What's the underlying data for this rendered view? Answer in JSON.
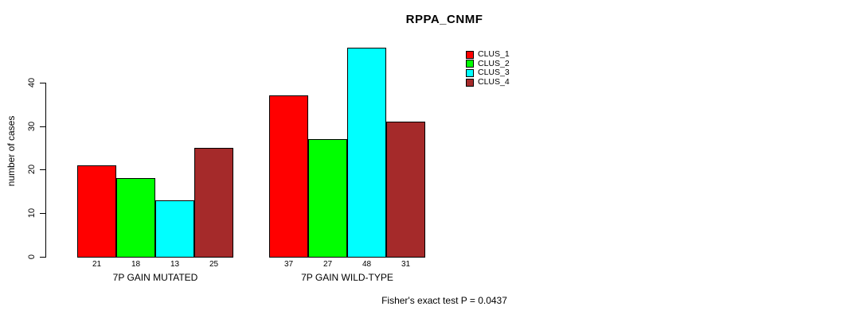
{
  "figure": {
    "title": "RPPA_CNMF",
    "y_axis_label": "number of cases",
    "annotation": "Fisher's exact test P = 0.0437"
  },
  "chart_data": {
    "type": "bar",
    "title": "RPPA_CNMF",
    "xlabel": "",
    "ylabel": "number of cases",
    "ylim": [
      0,
      48
    ],
    "yticks": [
      0,
      10,
      20,
      30,
      40
    ],
    "grid": false,
    "legend_position": "top-right",
    "categories": [
      "7P GAIN MUTATED",
      "7P GAIN WILD-TYPE"
    ],
    "series": [
      {
        "name": "CLUS_1",
        "color": "#ff0000",
        "values": [
          21,
          37
        ]
      },
      {
        "name": "CLUS_2",
        "color": "#00ff00",
        "values": [
          18,
          27
        ]
      },
      {
        "name": "CLUS_3",
        "color": "#00ffff",
        "values": [
          13,
          48
        ]
      },
      {
        "name": "CLUS_4",
        "color": "#a52a2a",
        "values": [
          25,
          31
        ]
      }
    ],
    "bar_value_labels": [
      [
        "21",
        "18",
        "13",
        "25"
      ],
      [
        "37",
        "27",
        "48",
        "31"
      ]
    ],
    "annotation": "Fisher's exact test P = 0.0437",
    "axis_color": "#000000",
    "background": "#ffffff"
  }
}
